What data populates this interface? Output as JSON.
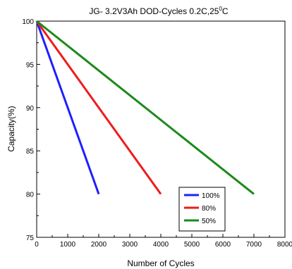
{
  "chart_data": {
    "type": "line",
    "title": "JG- 3.2V3Ah DOD-Cycles  0.2C,25",
    "title_sup": "0",
    "title_suffix": "C",
    "xlabel": "Number of Cycles",
    "ylabel": "Capacity(%)",
    "xlim": [
      0,
      8000
    ],
    "ylim": [
      75,
      100
    ],
    "x_ticks": [
      "0",
      "1000",
      "2000",
      "3000",
      "4000",
      "5000",
      "6000",
      "7000",
      "8000"
    ],
    "y_ticks": [
      "75",
      "80",
      "85",
      "90",
      "95",
      "100"
    ],
    "grid": false,
    "legend_position": "bottom-right",
    "series": [
      {
        "name": "100%",
        "color": "#1f1fff",
        "x": [
          0,
          2000
        ],
        "y": [
          100,
          80
        ]
      },
      {
        "name": "80%",
        "color": "#ee1c1c",
        "x": [
          0,
          4000
        ],
        "y": [
          100,
          80
        ]
      },
      {
        "name": "50%",
        "color": "#1a8a1a",
        "x": [
          0,
          7000
        ],
        "y": [
          100,
          80
        ]
      }
    ]
  }
}
